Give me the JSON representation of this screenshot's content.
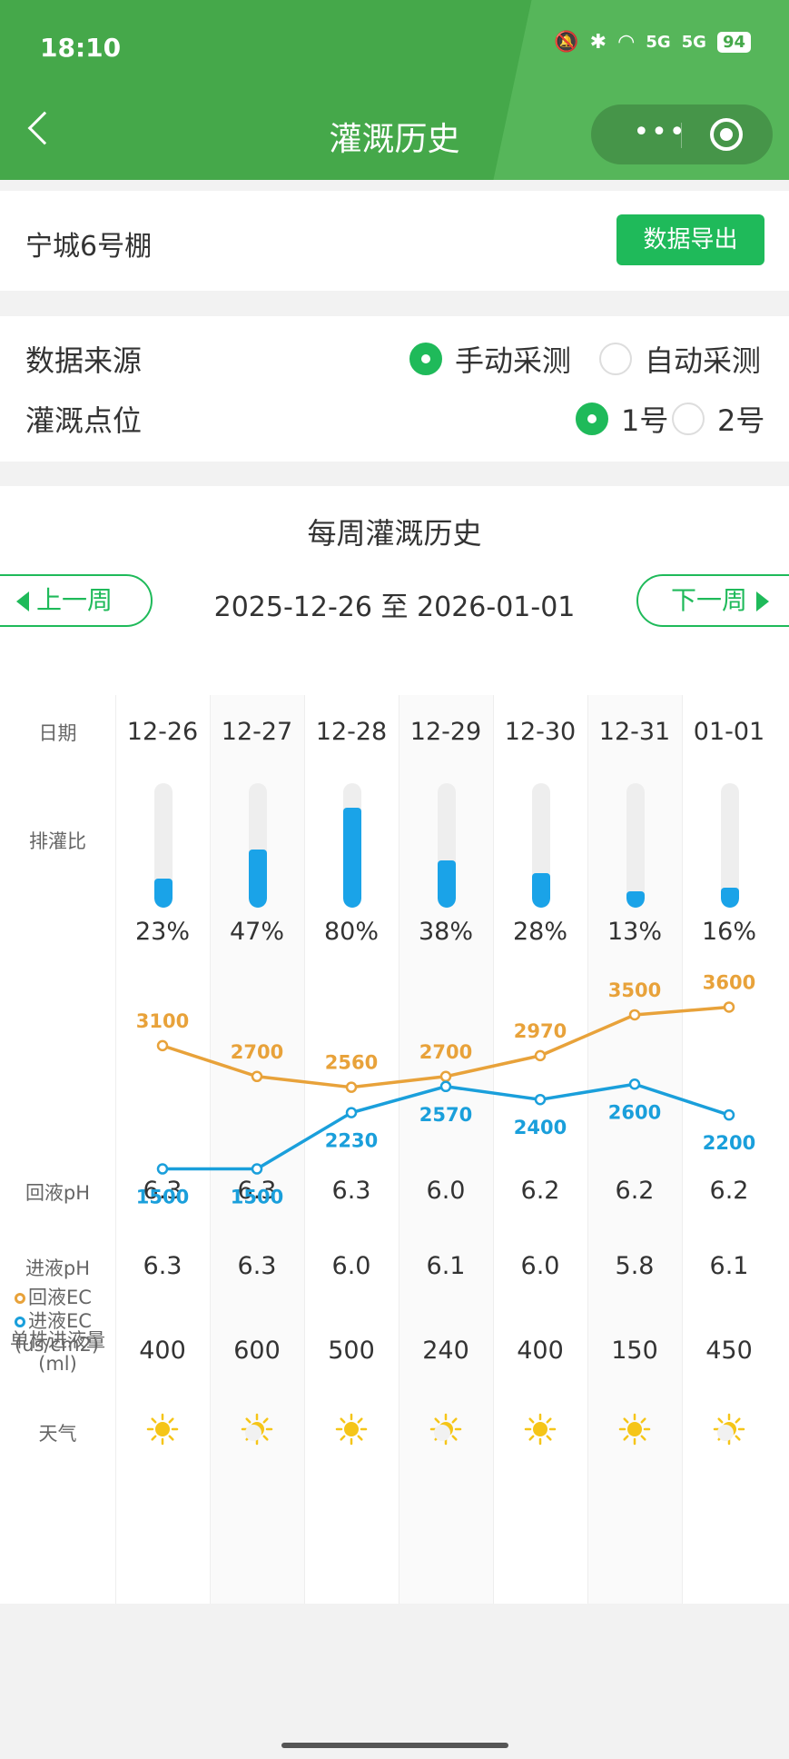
{
  "status_bar": {
    "time": "18:10",
    "battery": "94",
    "signal1": "5G",
    "signal2": "5G"
  },
  "header": {
    "title": "灌溉历史",
    "more_icon": "more-dots-icon",
    "target_icon": "target-icon"
  },
  "greenhouse": {
    "name": "宁城6号棚",
    "export_label": "数据导出"
  },
  "filters": {
    "source_label": "数据来源",
    "source_options": [
      "手动采测",
      "自动采测"
    ],
    "source_selected": 0,
    "point_label": "灌溉点位",
    "point_options": [
      "1号",
      "2号"
    ],
    "point_selected": 0
  },
  "history": {
    "title": "每周灌溉历史",
    "prev_label": "上一周",
    "next_label": "下一周",
    "range": "2025-12-26 至 2026-01-01",
    "row_labels": {
      "date": "日期",
      "ratio": "排灌比",
      "ec_return": "回液EC",
      "ec_in": "进液EC",
      "ec_unit": "(us/cm2)",
      "ph_return": "回液pH",
      "ph_in": "进液pH",
      "volume": "单株进液量",
      "volume_unit": "(ml)",
      "weather": "天气"
    },
    "colors": {
      "return_ec": "#e8a23a",
      "in_ec": "#1a9fdb",
      "bar": "#1aa3e8",
      "accent": "#1fba5a"
    },
    "days": [
      {
        "date": "12-26",
        "ratio_pct": "23%",
        "ratio": 0.23,
        "ec_return": "3100",
        "ec_in": "1500",
        "ph_return": "6.3",
        "ph_in": "6.3",
        "volume": "400",
        "weather": "sun-icon"
      },
      {
        "date": "12-27",
        "ratio_pct": "47%",
        "ratio": 0.47,
        "ec_return": "2700",
        "ec_in": "1500",
        "ph_return": "6.3",
        "ph_in": "6.3",
        "volume": "600",
        "weather": "partly-sunny-icon"
      },
      {
        "date": "12-28",
        "ratio_pct": "80%",
        "ratio": 0.8,
        "ec_return": "2560",
        "ec_in": "2230",
        "ph_return": "6.3",
        "ph_in": "6.0",
        "volume": "500",
        "weather": "sun-icon"
      },
      {
        "date": "12-29",
        "ratio_pct": "38%",
        "ratio": 0.38,
        "ec_return": "2700",
        "ec_in": "2570",
        "ph_return": "6.0",
        "ph_in": "6.1",
        "volume": "240",
        "weather": "partly-sunny-icon"
      },
      {
        "date": "12-30",
        "ratio_pct": "28%",
        "ratio": 0.28,
        "ec_return": "2970",
        "ec_in": "2400",
        "ph_return": "6.2",
        "ph_in": "6.0",
        "volume": "400",
        "weather": "sun-icon"
      },
      {
        "date": "12-31",
        "ratio_pct": "13%",
        "ratio": 0.13,
        "ec_return": "3500",
        "ec_in": "2600",
        "ph_return": "6.2",
        "ph_in": "5.8",
        "volume": "150",
        "weather": "sun-icon"
      },
      {
        "date": "01-01",
        "ratio_pct": "16%",
        "ratio": 0.16,
        "ec_return": "3600",
        "ec_in": "2200",
        "ph_return": "6.2",
        "ph_in": "6.1",
        "volume": "450",
        "weather": "partly-sunny-icon"
      }
    ]
  },
  "chart_data": {
    "type": "line",
    "categories": [
      "12-26",
      "12-27",
      "12-28",
      "12-29",
      "12-30",
      "12-31",
      "01-01"
    ],
    "series": [
      {
        "name": "回液EC",
        "values": [
          3100,
          2700,
          2560,
          2700,
          2970,
          3500,
          3600
        ]
      },
      {
        "name": "进液EC",
        "values": [
          1500,
          1500,
          2230,
          2570,
          2400,
          2600,
          2200
        ]
      }
    ],
    "ylabel": "(us/cm2)",
    "ylim": [
      1400,
      3700
    ],
    "bars": {
      "name": "排灌比",
      "values": [
        23,
        47,
        80,
        38,
        28,
        13,
        16
      ]
    }
  }
}
